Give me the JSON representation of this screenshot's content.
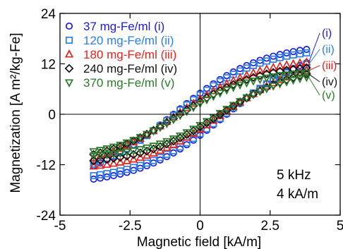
{
  "chart_data": {
    "type": "scatter",
    "xlabel": "Magnetic field [kA/m]",
    "ylabel": "Magnetization [A m²/kg-Fe]",
    "xlim": [
      -5,
      5
    ],
    "ylim": [
      -24,
      24
    ],
    "xticks": [
      "-5",
      "-2.5",
      "0",
      "2.5",
      "5"
    ],
    "yticks": [
      "-24",
      "-12",
      "0",
      "12",
      "24"
    ],
    "grid": false,
    "zero_lines": true,
    "legend_position": "top-left",
    "annotation_lines": [
      "5 kHz",
      "4 kA/m"
    ],
    "series": [
      {
        "name": "37 mg-Fe/ml",
        "tag": "(i)",
        "marker": "circle",
        "color": "#1a1adc",
        "Mmax": 17.0,
        "Mr": 5.0,
        "Hc": 0.95
      },
      {
        "name": "120 mg-Fe/ml",
        "tag": "(ii)",
        "marker": "square",
        "color": "#2d7fe0",
        "Mmax": 16.0,
        "Mr": 4.6,
        "Hc": 0.9
      },
      {
        "name": "180 mg-Fe/ml",
        "tag": "(iii)",
        "marker": "triangle-up",
        "color": "#e0241f",
        "Mmax": 13.5,
        "Mr": 3.6,
        "Hc": 0.8
      },
      {
        "name": "240 mg-Fe/ml",
        "tag": "(iv)",
        "marker": "diamond",
        "color": "#111111",
        "Mmax": 12.0,
        "Mr": 3.0,
        "Hc": 0.72
      },
      {
        "name": "370 mg-Fe/ml",
        "tag": "(v)",
        "marker": "triangle-down",
        "color": "#2a7a2a",
        "Mmax": 10.5,
        "Mr": 2.6,
        "Hc": 0.65
      }
    ]
  }
}
